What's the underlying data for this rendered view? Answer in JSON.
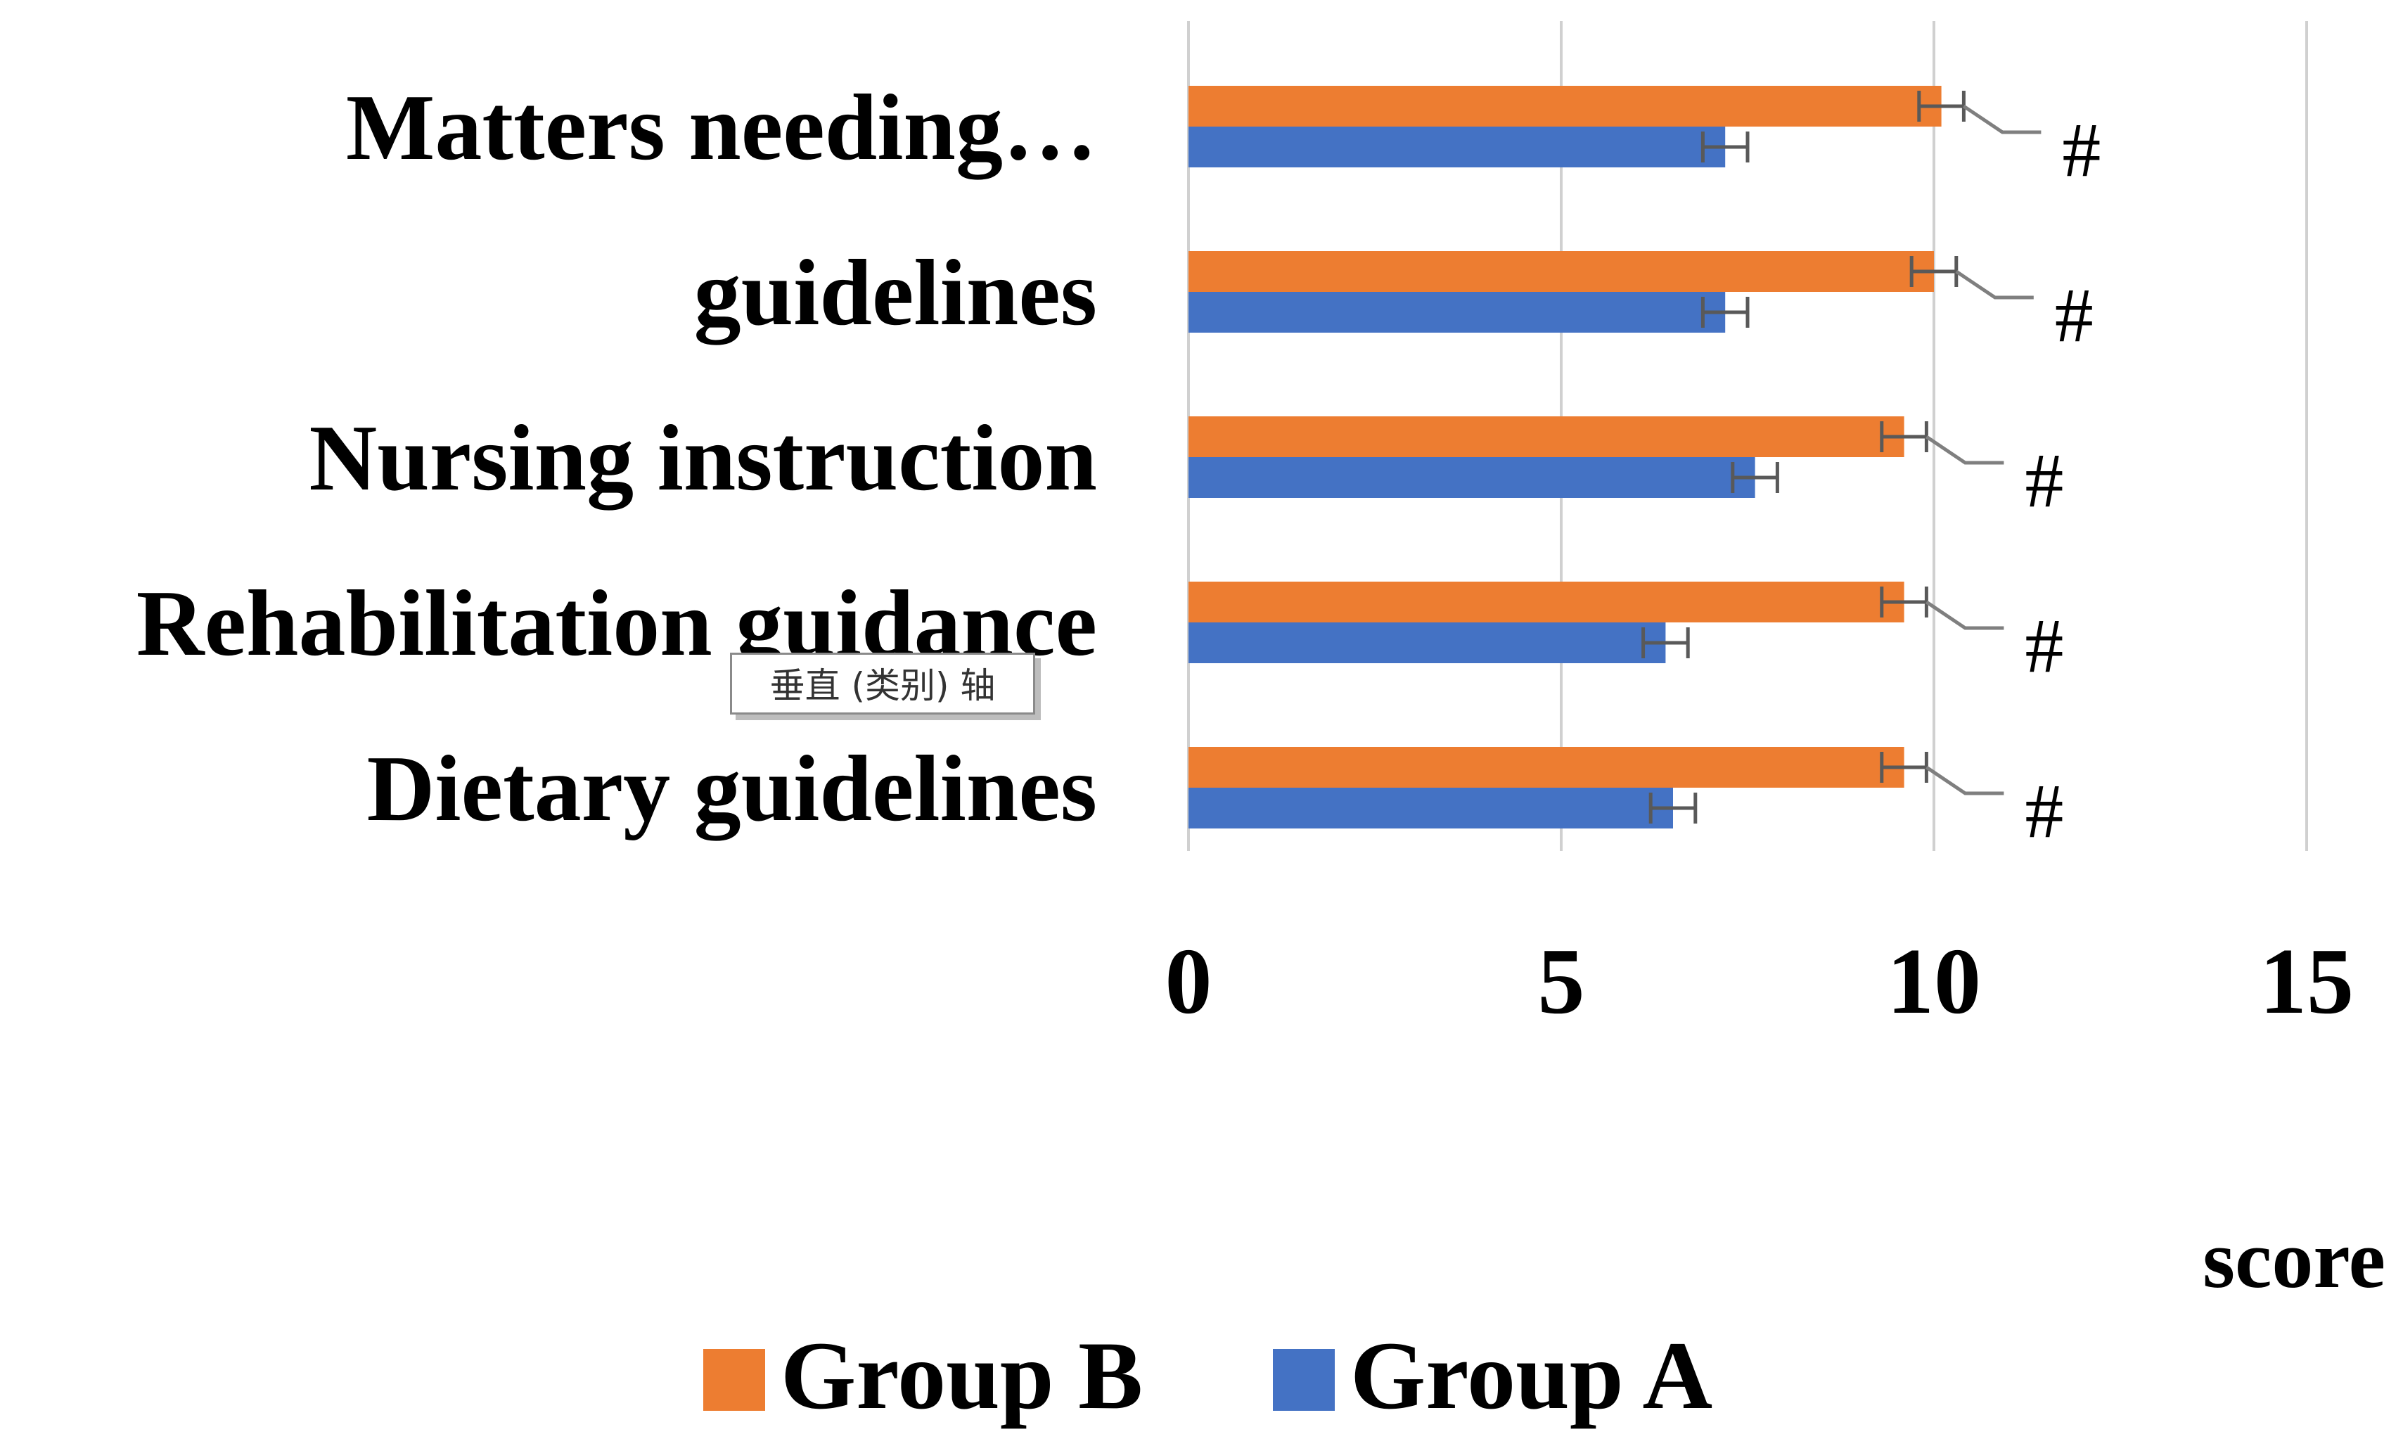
{
  "chart_data": {
    "type": "bar",
    "orientation": "horizontal",
    "categories": [
      "Matters needing…",
      "guidelines",
      "Nursing instruction",
      "Rehabilitation guidance",
      "Dietary guidelines"
    ],
    "series": [
      {
        "name": "Group B",
        "color": "#ED7D31",
        "values": [
          10.1,
          10.0,
          9.6,
          9.6,
          9.6
        ],
        "errors": [
          0.3,
          0.3,
          0.3,
          0.3,
          0.3
        ]
      },
      {
        "name": "Group A",
        "color": "#4472C4",
        "values": [
          7.2,
          7.2,
          7.6,
          6.4,
          6.5
        ],
        "errors": [
          0.3,
          0.3,
          0.3,
          0.3,
          0.3
        ]
      }
    ],
    "xlim": [
      0,
      15
    ],
    "xticks": [
      "0",
      "5",
      "10",
      "15"
    ],
    "xlabel": "score",
    "annotations": [
      "#",
      "#",
      "#",
      "#",
      "#"
    ],
    "grid": "vertical",
    "legend_position": "bottom"
  },
  "tooltip": {
    "text": "垂直 (类别) 轴"
  },
  "colors": {
    "gridline": "#d0d0d0",
    "errorbar": "#595959",
    "leader": "#7f7f7f"
  }
}
